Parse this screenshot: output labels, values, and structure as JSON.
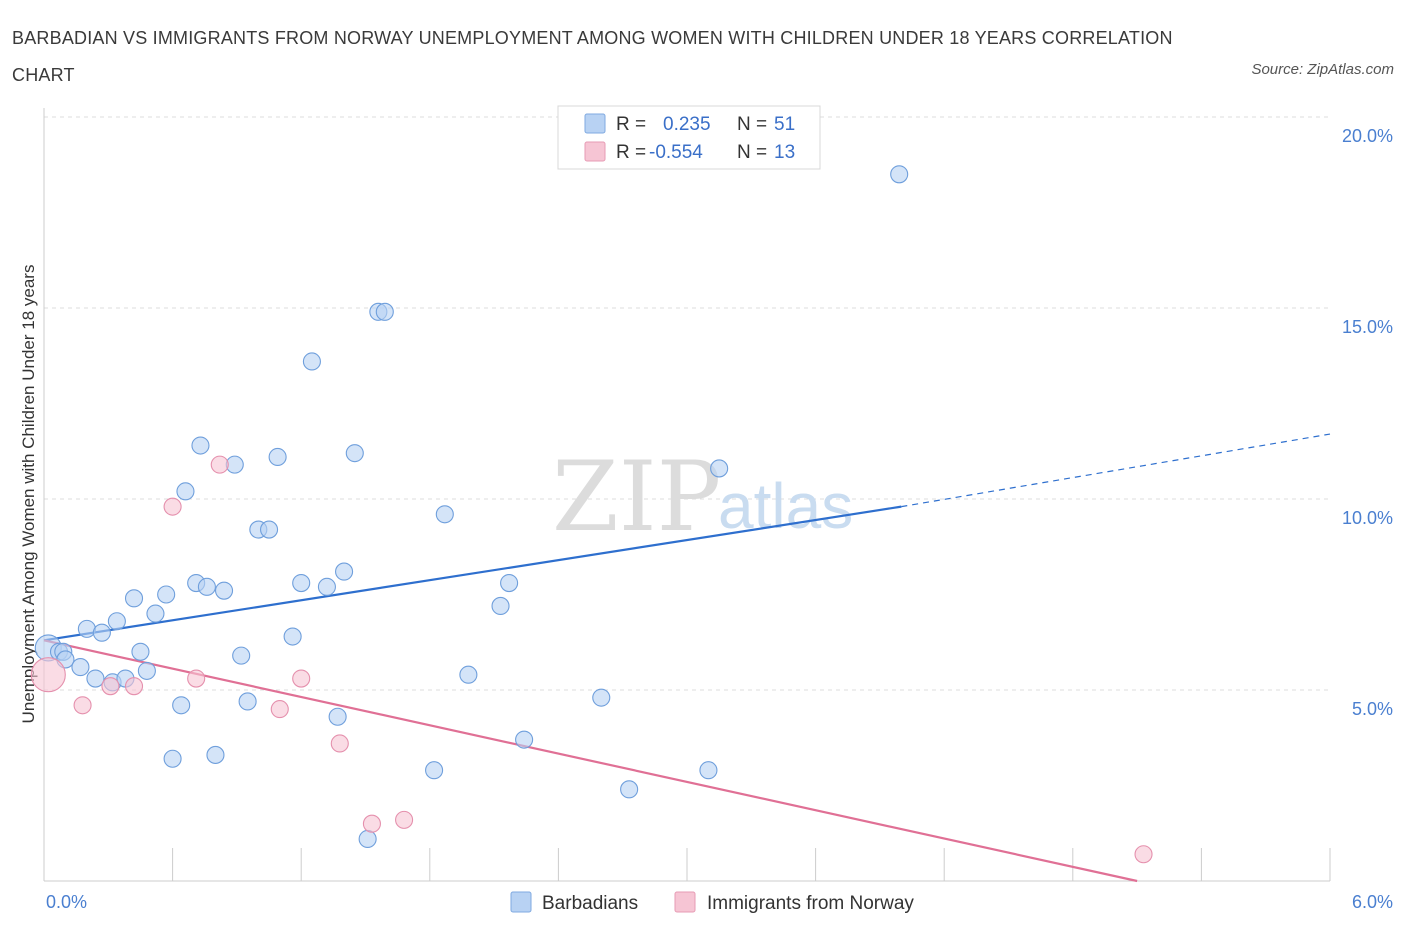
{
  "title": "BARBADIAN VS IMMIGRANTS FROM NORWAY UNEMPLOYMENT AMONG WOMEN WITH CHILDREN UNDER 18 YEARS CORRELATION CHART",
  "source": "Source: ZipAtlas.com",
  "watermark": {
    "zip": "ZIP",
    "atlas": "atlas"
  },
  "colors": {
    "blue": "#4a7fd0",
    "blue_fill": "#b8d2f3",
    "blue_line": "#2e6fce",
    "pink": "#e07095",
    "pink_fill": "#f6c5d4",
    "pink_line": "#e07095",
    "grid": "#dddddd"
  },
  "legend": {
    "r_label": "R =",
    "n_label": "N =",
    "rows": [
      {
        "r": "0.235",
        "n": "51"
      },
      {
        "r": "-0.554",
        "n": "13"
      }
    ]
  },
  "chart_data": {
    "type": "scatter",
    "ylabel": "Unemployment Among Women with Children Under 18 years",
    "xlim": [
      0,
      6
    ],
    "ylim": [
      0,
      20
    ],
    "x_tick_labels": [
      {
        "value": 0,
        "label": "0.0%"
      },
      {
        "value": 6,
        "label": "6.0%"
      }
    ],
    "y_tick_labels": [
      {
        "value": 5,
        "label": "5.0%"
      },
      {
        "value": 10,
        "label": "10.0%"
      },
      {
        "value": 15,
        "label": "15.0%"
      },
      {
        "value": 20,
        "label": "20.0%"
      }
    ],
    "grid": "horizontal dashed",
    "legend_placement": "bottom",
    "series": [
      {
        "name": "Barbadians",
        "trend": {
          "x": [
            0.0,
            4.0
          ],
          "y": [
            6.3,
            9.8
          ],
          "extension": {
            "x": [
              4.0,
              6.0
            ],
            "y": [
              9.8,
              11.7
            ]
          }
        },
        "points": [
          [
            0.02,
            6.1
          ],
          [
            0.07,
            6.0
          ],
          [
            0.09,
            6.0
          ],
          [
            0.1,
            5.8
          ],
          [
            0.17,
            5.6
          ],
          [
            0.2,
            6.6
          ],
          [
            0.24,
            5.3
          ],
          [
            0.27,
            6.5
          ],
          [
            0.32,
            5.2
          ],
          [
            0.34,
            6.8
          ],
          [
            0.38,
            5.3
          ],
          [
            0.42,
            7.4
          ],
          [
            0.45,
            6.0
          ],
          [
            0.48,
            5.5
          ],
          [
            0.52,
            7.0
          ],
          [
            0.57,
            7.5
          ],
          [
            0.6,
            3.2
          ],
          [
            0.64,
            4.6
          ],
          [
            0.66,
            10.2
          ],
          [
            0.71,
            7.8
          ],
          [
            0.73,
            11.4
          ],
          [
            0.76,
            7.7
          ],
          [
            0.8,
            3.3
          ],
          [
            0.84,
            7.6
          ],
          [
            0.89,
            10.9
          ],
          [
            0.92,
            5.9
          ],
          [
            0.95,
            4.7
          ],
          [
            1.0,
            9.2
          ],
          [
            1.05,
            9.2
          ],
          [
            1.09,
            11.1
          ],
          [
            1.16,
            6.4
          ],
          [
            1.2,
            7.8
          ],
          [
            1.25,
            13.6
          ],
          [
            1.32,
            7.7
          ],
          [
            1.37,
            4.3
          ],
          [
            1.4,
            8.1
          ],
          [
            1.45,
            11.2
          ],
          [
            1.51,
            1.1
          ],
          [
            1.56,
            14.9
          ],
          [
            1.59,
            14.9
          ],
          [
            1.82,
            2.9
          ],
          [
            1.87,
            9.6
          ],
          [
            1.98,
            5.4
          ],
          [
            2.13,
            7.2
          ],
          [
            2.17,
            7.8
          ],
          [
            2.24,
            3.7
          ],
          [
            2.6,
            4.8
          ],
          [
            2.73,
            2.4
          ],
          [
            3.1,
            2.9
          ],
          [
            3.15,
            10.8
          ],
          [
            3.99,
            18.5
          ]
        ]
      },
      {
        "name": "Immigrants from Norway",
        "trend": {
          "x": [
            0.0,
            5.1
          ],
          "y": [
            6.3,
            0.0
          ]
        },
        "points": [
          [
            0.02,
            5.4
          ],
          [
            0.18,
            4.6
          ],
          [
            0.31,
            5.1
          ],
          [
            0.42,
            5.1
          ],
          [
            0.6,
            9.8
          ],
          [
            0.71,
            5.3
          ],
          [
            0.82,
            10.9
          ],
          [
            1.1,
            4.5
          ],
          [
            1.2,
            5.3
          ],
          [
            1.38,
            3.6
          ],
          [
            1.53,
            1.5
          ],
          [
            1.68,
            1.6
          ],
          [
            5.13,
            0.7
          ]
        ]
      }
    ]
  }
}
